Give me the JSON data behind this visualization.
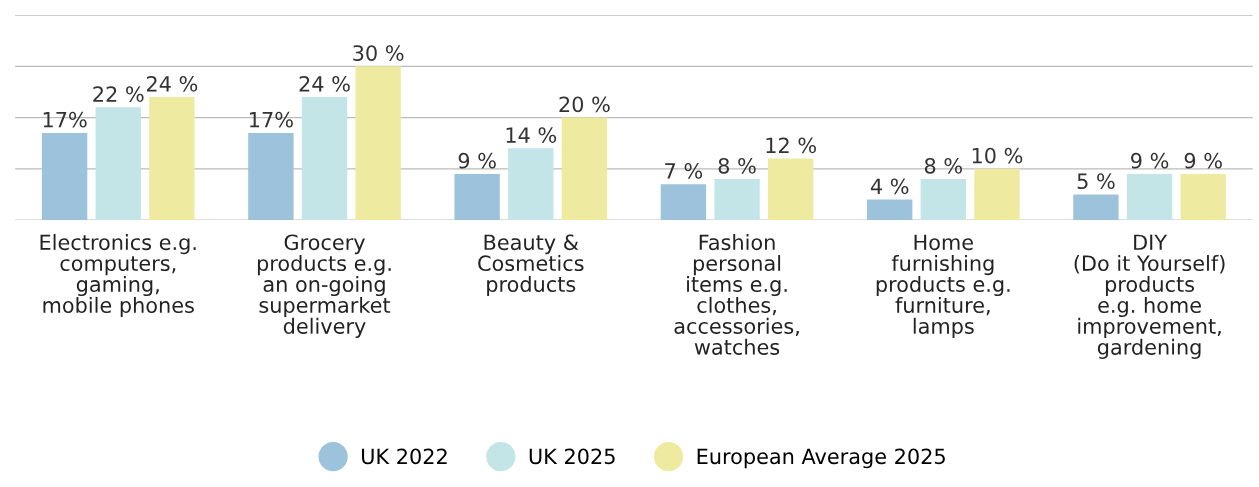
{
  "chart_data": {
    "type": "bar",
    "categories": [
      "Electronics e.g.\ncomputers,\ngaming,\nmobile phones",
      "Grocery\nproducts e.g.\nan on-going\nsupermarket\ndelivery",
      "Beauty &\nCosmetics\nproducts",
      "Fashion\npersonal\nitems e.g.\nclothes,\naccessories,\nwatches",
      "Home\nfurnishing\nproducts e.g.\nfurniture,\nlamps",
      "DIY\n(Do it Yourself)\nproducts\ne.g. home\nimprovement,\ngardening"
    ],
    "series": [
      {
        "name": "UK 2022",
        "color": "#9dc3dc",
        "values": [
          17,
          17,
          9,
          7,
          4,
          5
        ],
        "value_labels": [
          "17%",
          "17%",
          "9 %",
          "7 %",
          "4 %",
          "5 %"
        ]
      },
      {
        "name": "UK 2025",
        "color": "#c3e5e8",
        "values": [
          22,
          24,
          14,
          8,
          8,
          9
        ],
        "value_labels": [
          "22 %",
          "24 %",
          "14 %",
          "8 %",
          "8 %",
          "9 %"
        ]
      },
      {
        "name": "European Average 2025",
        "color": "#eeeba1",
        "values": [
          24,
          30,
          20,
          12,
          10,
          9
        ],
        "value_labels": [
          "24 %",
          "30 %",
          "20 %",
          "12 %",
          "10 %",
          "9 %"
        ]
      }
    ],
    "ylim": [
      0,
      40
    ],
    "yticks": [
      {
        "value": 0,
        "label": null
      },
      {
        "value": 10,
        "label": null
      },
      {
        "value": 20,
        "label": null
      },
      {
        "value": 30,
        "label": null
      },
      {
        "value": 40,
        "label": null
      }
    ],
    "tick_labels": "x",
    "grid": "y",
    "legend": "bottom"
  }
}
